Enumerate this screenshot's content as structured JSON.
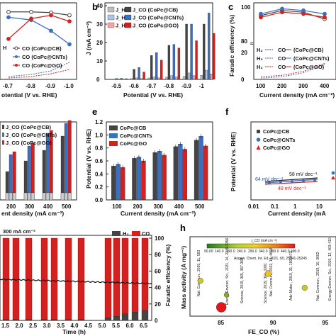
{
  "colors": {
    "cb": "#444444",
    "cnts": "#3a6fc2",
    "go": "#d62020",
    "cb_light": "#bdbdbd",
    "cnts_light": "#a9c4e8",
    "go_light": "#f2a3a3"
  },
  "panels": {
    "a": {
      "label": ""
    },
    "b": {
      "label": "b"
    },
    "c": {
      "label": "c"
    },
    "d": {
      "label": ""
    },
    "e": {
      "label": "e"
    },
    "f": {
      "label": "f"
    },
    "g": {
      "label": ""
    },
    "h": {
      "label": "h"
    }
  },
  "chart_data": [
    {
      "panel": "a",
      "type": "line",
      "xlabel": "otential (V vs. RHE)",
      "x_ticks": [
        "-0.7",
        "-0.8",
        "-0.9",
        "-1.0"
      ],
      "x": [
        -0.7,
        -0.8,
        -0.9,
        -1.0
      ],
      "series": [
        {
          "name": "CO (CoPc@CB)",
          "values": [
            100,
            100,
            99,
            95
          ]
        },
        {
          "name": "CO (CoPc@CNTs)",
          "values": [
            92,
            88,
            72,
            52
          ]
        },
        {
          "name": "CO (CoPc@GO)",
          "values": [
            60,
            90,
            95,
            86
          ]
        }
      ],
      "legend": [
        "H",
        "CO (CoPc@CB)",
        "CO (CoPc@CNTs)",
        "CO (CoPc@GO)"
      ]
    },
    {
      "panel": "b",
      "type": "bar",
      "ylabel": "J (mA cm⁻²)",
      "xlabel": "Potential (V vs. RHE)",
      "categories": [
        "-0.5",
        "-0.6",
        "-0.7",
        "-0.8",
        "-0.9",
        "-1"
      ],
      "ylim": [
        0,
        40
      ],
      "y_ticks": [
        "0",
        "10",
        "20",
        "30",
        "40"
      ],
      "series": [
        {
          "name": "J_H₂",
          "values": [
            0.2,
            0.5,
            0.8,
            1.2,
            1.6,
            2.2
          ]
        },
        {
          "name": "J_CO (CoPc@CB)",
          "values": [
            0.5,
            5.5,
            13,
            18.5,
            30,
            30
          ]
        },
        {
          "name": "J_H₂",
          "values": [
            0.3,
            0.8,
            1.4,
            2.0,
            3.5,
            5.0
          ]
        },
        {
          "name": "J_CO (CoPc@CNTs)",
          "values": [
            0.6,
            6.5,
            14.5,
            19,
            30,
            36
          ]
        },
        {
          "name": "J_H₂",
          "values": [
            0.2,
            0.5,
            0.9,
            1.4,
            2.0,
            3.0
          ]
        },
        {
          "name": "J_CO (CoPc@GO)",
          "values": [
            0.4,
            4,
            10.5,
            17,
            21,
            25
          ]
        }
      ],
      "legend": [
        "J_H₂",
        "J_CO (CoPc@CB)",
        "J_H₂",
        "J_CO (CoPc@CNTs)",
        "J_H₂",
        "J_CO (CoPc@GO)"
      ]
    },
    {
      "panel": "c",
      "type": "line",
      "ylabel": "Faradic efficiency (%)",
      "xlabel": "Current density (mA cm⁻²)",
      "x_ticks": [
        "100",
        "200",
        "300",
        "400"
      ],
      "y_ticks": [
        "0",
        "20",
        "80",
        "100"
      ],
      "x": [
        100,
        200,
        300,
        400
      ],
      "series": [
        {
          "name": "CO (CoPc@CB)",
          "values": [
            95,
            98,
            97,
            93
          ]
        },
        {
          "name": "CO (CoPc@CNTs)",
          "values": [
            96,
            99,
            98,
            96
          ]
        },
        {
          "name": "CO (CoPc@GO)",
          "values": [
            94,
            97,
            96,
            94
          ]
        },
        {
          "name": "H₂",
          "values": [
            2,
            3,
            6,
            12
          ]
        }
      ],
      "legend": [
        "H₂",
        "CO",
        "(CoPc@CB)",
        "H₂",
        "CO",
        "(CoPc@CNTs)",
        "H₂",
        "CO",
        "(CoPc@GO)"
      ]
    },
    {
      "panel": "d",
      "type": "bar",
      "xlabel": "ent density (mA cm⁻²)",
      "categories": [
        "200",
        "300",
        "400",
        "500"
      ],
      "legend": [
        "J_CO (CoPc@CB)",
        "J_CO (CoPc@CNTs)",
        "J_CO (CoPc@GO)"
      ]
    },
    {
      "panel": "e",
      "type": "bar",
      "ylabel": "Potential (V vs. RHE)",
      "xlabel": "Current density (mA cm⁻²)",
      "categories": [
        "100",
        "200",
        "300",
        "400",
        "500"
      ],
      "ylim": [
        0,
        1.2
      ],
      "y_ticks": [
        "0.0",
        "0.2",
        "0.4",
        "0.6",
        "0.8",
        "1.0",
        "1.2"
      ],
      "series": [
        {
          "name": "CoPc@CB",
          "values": [
            0.52,
            0.64,
            0.73,
            0.82,
            0.92
          ]
        },
        {
          "name": "CoPc@CNTs",
          "values": [
            0.55,
            0.66,
            0.75,
            0.86,
            0.98
          ]
        },
        {
          "name": "CoPc@GO",
          "values": [
            0.5,
            0.6,
            0.69,
            0.78,
            0.83
          ]
        }
      ],
      "legend": [
        "CoPc@CB",
        "CoPc@CNTs",
        "CoPc@GO"
      ]
    },
    {
      "panel": "f",
      "type": "scatter",
      "ylabel": "Potential (V vs. RHE)",
      "xlabel": "Current density (mA",
      "x_ticks": [
        "0.01",
        "0.1",
        "1",
        "10"
      ],
      "legend": [
        "CoPc@CB",
        "CoPc@CNTs",
        "CoPc@GO"
      ],
      "annotations": [
        "64 mV dec⁻¹",
        "58 mV dec⁻¹",
        "49 mV dec⁻¹"
      ]
    },
    {
      "panel": "g",
      "type": "bar",
      "ylabel": "Faradic efficiency (%)",
      "xlabel": "Time (h)",
      "x_ticks": [
        "1.5",
        "2.0",
        "2.5",
        "3.0",
        "3.5",
        "4.0",
        "4.5",
        "5.0",
        "5.5",
        "6.0",
        "6.5"
      ],
      "y_ticks": [
        "0",
        "20",
        "40",
        "60",
        "80",
        "100"
      ],
      "ylim": [
        0,
        100
      ],
      "annotation": "300 mA cm⁻²",
      "legend": [
        "H₂",
        "CO"
      ],
      "series": [
        {
          "name": "CO",
          "values": [
            99,
            99,
            99,
            99,
            99,
            99,
            99,
            97,
            95,
            92,
            90,
            88
          ]
        },
        {
          "name": "H₂",
          "values": [
            1,
            1,
            1,
            1,
            1,
            1,
            1,
            3,
            5,
            8,
            10,
            12
          ]
        }
      ]
    },
    {
      "panel": "h",
      "type": "scatter",
      "ylabel": "Mass activity (A mg⁻¹)",
      "xlabel": "FE_CO (%)",
      "x_ticks": [
        "85",
        "90",
        "95"
      ],
      "colorbar_title": "j_CO (mA cm⁻²)",
      "colorbar_ticks": [
        "90.00",
        "140.0",
        "190.0",
        "240.0",
        "290.0",
        "340.0",
        "390.0",
        "440.0",
        "490.0"
      ],
      "references": [
        "Nat. Commun., 2020, 11, 593",
        "Energy Environ. Sci., 2021, 14, 2349-2356",
        "Angew. Chem. Int. Ed. 2021, 60, 25241-25245",
        "Science, 2019, 365, 367-369",
        "Science, 2019, 364, 1091",
        "Nat. Commun., 2022, 13, 4602",
        "Adv. Mater., 2019, 31, 1903470",
        "Nat. Commun., 2019, 10, 3602",
        "Energy Environ. Sci., 2019, 12, 403-410"
      ],
      "points": [
        {
          "x": 83,
          "y": 20,
          "c": 190
        },
        {
          "x": 85,
          "y": 5,
          "c": 490
        },
        {
          "x": 85.5,
          "y": 12,
          "c": 140
        },
        {
          "x": 89.5,
          "y": 24,
          "c": 240
        },
        {
          "x": 93,
          "y": 16,
          "c": 190
        },
        {
          "x": 97,
          "y": 36,
          "c": 440
        }
      ]
    }
  ]
}
